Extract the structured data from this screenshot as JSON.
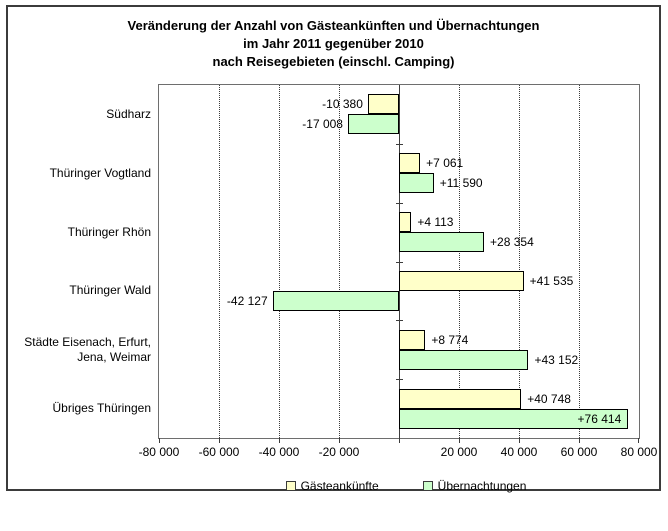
{
  "title": {
    "line1": "Veränderung der Anzahl von Gästeankünften und Übernachtungen",
    "line2": "im Jahr 2011 gegenüber 2010",
    "line3": "nach Reisegebieten (einschl. Camping)"
  },
  "chart_data": {
    "type": "bar",
    "orientation": "horizontal",
    "title": "Veränderung der Anzahl von Gästeankünften und Übernachtungen im Jahr 2011 gegenüber 2010 nach Reisegebieten (einschl. Camping)",
    "categories": [
      "Südharz",
      "Thüringer Vogtland",
      "Thüringer Rhön",
      "Thüringer Wald",
      "Städte Eisenach, Erfurt,\nJena, Weimar",
      "Übriges Thüringen"
    ],
    "series": [
      {
        "name": "Gästeankünfte",
        "color": "#FFFFC9",
        "values": [
          -10380,
          7061,
          4113,
          41535,
          8774,
          40748
        ],
        "data_labels": [
          "-10 380",
          "+7 061",
          "+4 113",
          "+41 535",
          "+8 774",
          "+40 748"
        ]
      },
      {
        "name": "Übernachtungen",
        "color": "#CCFFCC",
        "values": [
          -17008,
          11590,
          28354,
          -42127,
          43152,
          76414
        ],
        "data_labels": [
          "-17 008",
          "+11 590",
          "+28 354",
          "-42 127",
          "+43 152",
          "+76 414"
        ]
      }
    ],
    "xlim": [
      -80000,
      80000
    ],
    "x_ticks": [
      -80000,
      -60000,
      -40000,
      -20000,
      0,
      20000,
      40000,
      60000,
      80000
    ],
    "x_tick_labels": [
      "-80 000",
      "-60 000",
      "-40 000",
      "-20 000",
      "",
      "20 000",
      "40 000",
      "60 000",
      "80 000"
    ],
    "grid": "vertical-dotted",
    "legend_position": "bottom-center"
  },
  "legend": {
    "items": [
      {
        "label": "Gästeankünfte",
        "color": "#FFFFC9"
      },
      {
        "label": "Übernachtungen",
        "color": "#CCFFCC"
      }
    ]
  }
}
